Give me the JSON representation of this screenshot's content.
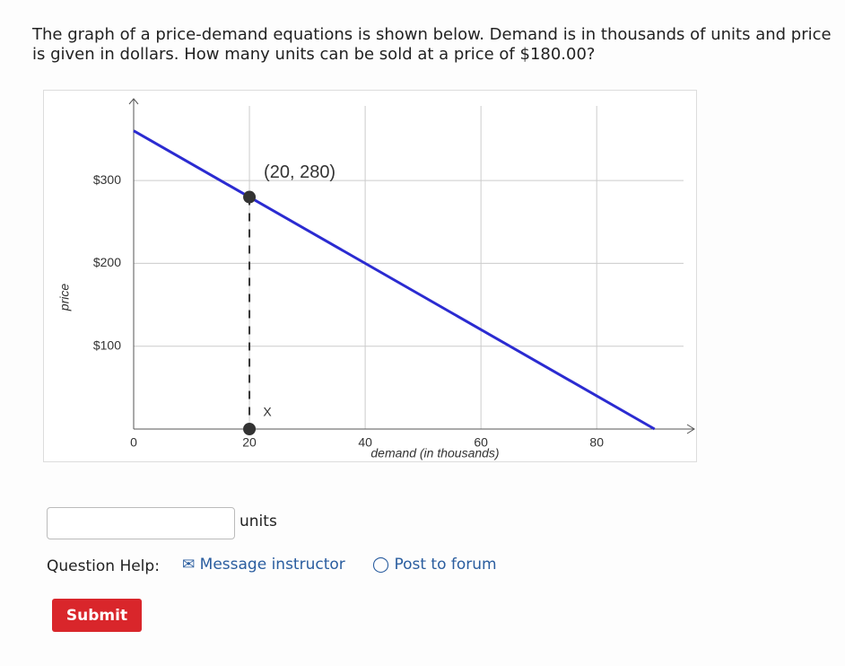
{
  "question": "The graph of a price-demand equations is shown below. Demand is in thousands of units and price is given in dollars. How many units can be sold at a price of $180.00?",
  "chart_data": {
    "type": "line",
    "xlabel": "demand (in thousands)",
    "ylabel": "price",
    "xlim": [
      0,
      95
    ],
    "ylim": [
      0,
      390
    ],
    "xticks": [
      0,
      20,
      40,
      60,
      80
    ],
    "yticks": [
      {
        "value": 100,
        "label": "$100"
      },
      {
        "value": 200,
        "label": "$200"
      },
      {
        "value": 300,
        "label": "$300"
      }
    ],
    "grid": true,
    "series": [
      {
        "color": "#2b2bd1",
        "x": [
          0,
          90
        ],
        "values": [
          360,
          0
        ]
      }
    ],
    "points": [
      {
        "x": 20,
        "y": 280,
        "label": "(20, 280)"
      },
      {
        "x": 20,
        "y": 0,
        "label": "X"
      }
    ]
  },
  "answer_unit": "units",
  "help_label": "Question Help:",
  "links": [
    "Message instructor",
    "Post to forum"
  ],
  "submit": "Submit"
}
